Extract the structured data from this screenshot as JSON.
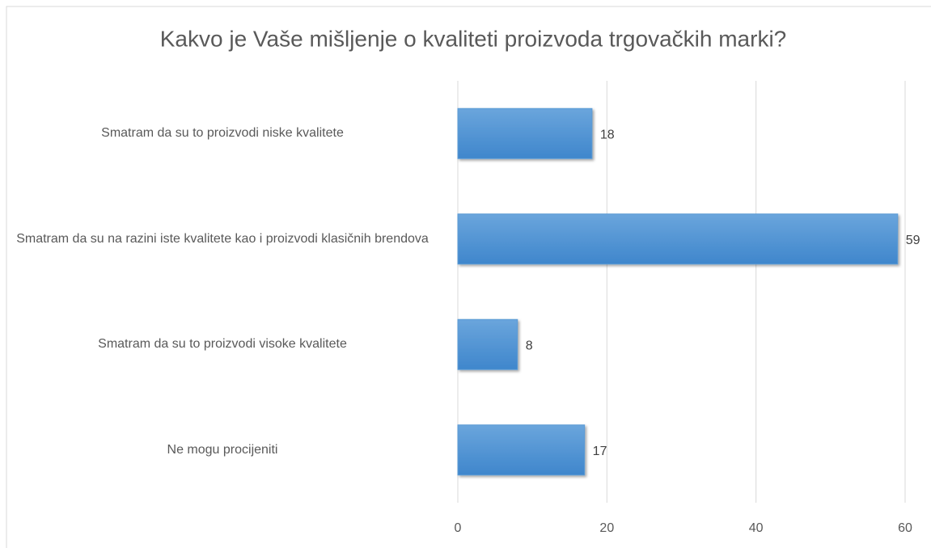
{
  "chart_data": {
    "type": "hbar",
    "title": "Kakvo je Vaše mišljenje o kvaliteti proizvoda trgovačkih marki?",
    "categories": [
      "Smatram da su to proizvodi niske kvalitete",
      "Smatram da su na razini iste kvalitete kao i proizvodi klasičnih brendova",
      "Smatram da su to proizvodi visoke kvalitete",
      "Ne mogu procijeniti"
    ],
    "values": [
      18,
      59,
      8,
      17
    ],
    "color": "#5b9bd5",
    "xlim": [
      0,
      60
    ],
    "xticks": [
      0,
      20,
      40,
      60
    ],
    "grid": true
  }
}
